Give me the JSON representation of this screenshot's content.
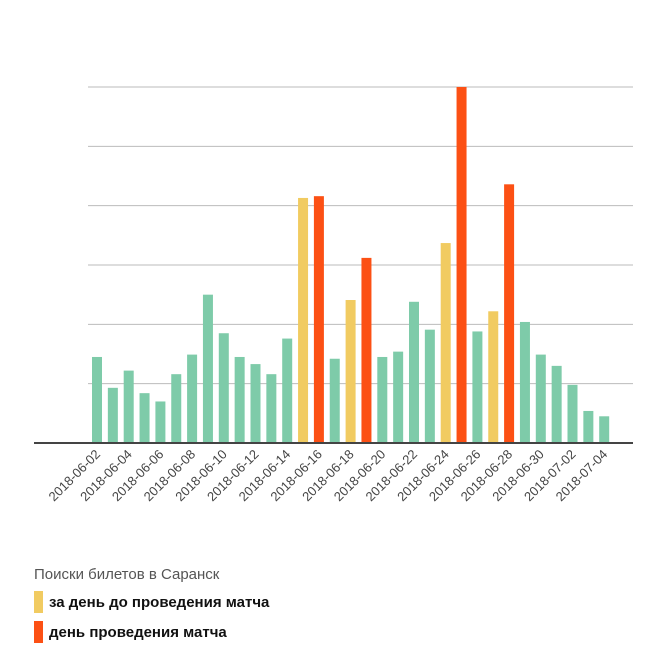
{
  "colors": {
    "normal": "#7ecba9",
    "day_before": "#f1cb61",
    "match_day": "#fc5014",
    "grid": "#bbbbbb",
    "axis": "#444444"
  },
  "chart_data": {
    "type": "bar",
    "title": "",
    "xlabel": "",
    "ylabel": "",
    "ylim": [
      0,
      6
    ],
    "grid": true,
    "y_tick_labels_visible": false,
    "categories": [
      "2018-06-02",
      "2018-06-03",
      "2018-06-04",
      "2018-06-05",
      "2018-06-06",
      "2018-06-07",
      "2018-06-08",
      "2018-06-09",
      "2018-06-10",
      "2018-06-11",
      "2018-06-12",
      "2018-06-13",
      "2018-06-14",
      "2018-06-15",
      "2018-06-16",
      "2018-06-17",
      "2018-06-18",
      "2018-06-19",
      "2018-06-20",
      "2018-06-21",
      "2018-06-22",
      "2018-06-23",
      "2018-06-24",
      "2018-06-25",
      "2018-06-26",
      "2018-06-27",
      "2018-06-28",
      "2018-06-29",
      "2018-06-30",
      "2018-07-01",
      "2018-07-02",
      "2018-07-03",
      "2018-07-04"
    ],
    "tick_labels": [
      "2018-06-02",
      "2018-06-04",
      "2018-06-06",
      "2018-06-08",
      "2018-06-10",
      "2018-06-12",
      "2018-06-14",
      "2018-06-16",
      "2018-06-18",
      "2018-06-20",
      "2018-06-22",
      "2018-06-24",
      "2018-06-26",
      "2018-06-28",
      "2018-06-30",
      "2018-07-02",
      "2018-07-04"
    ],
    "values": [
      1.45,
      0.93,
      1.22,
      0.84,
      0.7,
      1.16,
      1.49,
      2.5,
      1.85,
      1.45,
      1.33,
      1.16,
      1.76,
      4.13,
      4.16,
      1.42,
      2.41,
      3.12,
      1.45,
      1.54,
      2.38,
      1.91,
      3.37,
      6.0,
      1.88,
      2.22,
      4.36,
      2.04,
      1.49,
      1.3,
      0.98,
      0.54,
      0.45
    ],
    "kinds": [
      "normal",
      "normal",
      "normal",
      "normal",
      "normal",
      "normal",
      "normal",
      "normal",
      "normal",
      "normal",
      "normal",
      "normal",
      "normal",
      "day_before",
      "match_day",
      "normal",
      "day_before",
      "match_day",
      "normal",
      "normal",
      "normal",
      "normal",
      "day_before",
      "match_day",
      "normal",
      "day_before",
      "match_day",
      "normal",
      "normal",
      "normal",
      "normal",
      "normal",
      "normal"
    ],
    "legend": {
      "title": "Поиски билетов в Саранск",
      "placement": "bottom-left",
      "items": [
        {
          "key": "day_before",
          "label": "за день до проведения матча"
        },
        {
          "key": "match_day",
          "label": "день проведения матча"
        }
      ]
    }
  }
}
